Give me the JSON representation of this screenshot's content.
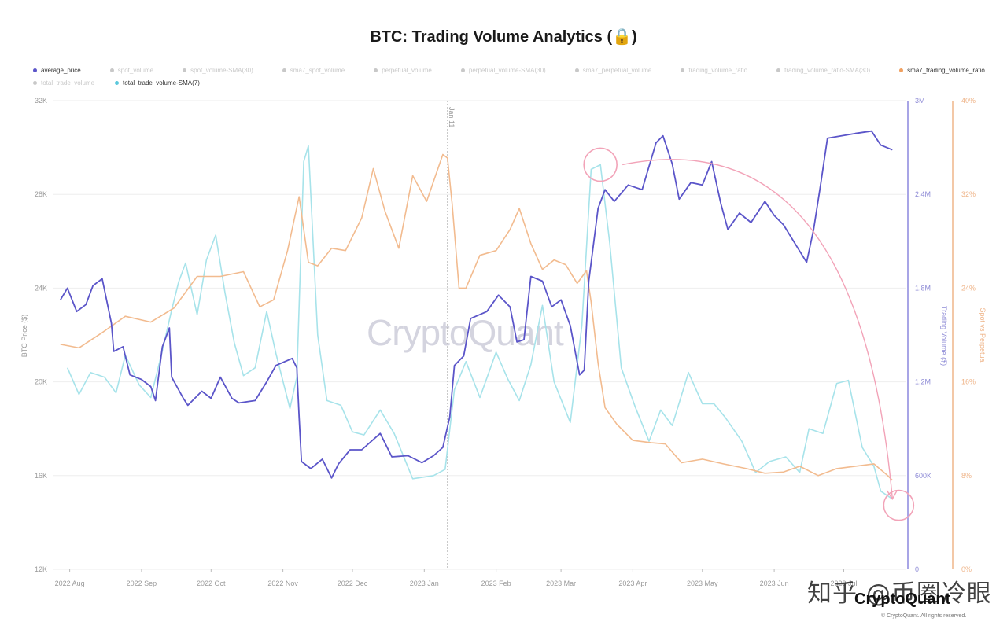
{
  "title": "BTC: Trading Volume Analytics (🔒)",
  "legend": {
    "row1": [
      {
        "label": "average_price",
        "color": "#5b55c9",
        "active": true
      },
      {
        "label": "spot_volume",
        "color": "#c8c8c8",
        "active": false
      },
      {
        "label": "spot_volume-SMA(30)",
        "color": "#c8c8c8",
        "active": false
      },
      {
        "label": "sma7_spot_volume",
        "color": "#c8c8c8",
        "active": false
      },
      {
        "label": "perpetual_volume",
        "color": "#c8c8c8",
        "active": false
      },
      {
        "label": "perpetual_volume-SMA(30)",
        "color": "#c8c8c8",
        "active": false
      },
      {
        "label": "sma7_perpetual_volume",
        "color": "#c8c8c8",
        "active": false
      },
      {
        "label": "trading_volume_ratio",
        "color": "#c8c8c8",
        "active": false
      },
      {
        "label": "trading_volume_ratio-SMA(30)",
        "color": "#c8c8c8",
        "active": false
      },
      {
        "label": "sma7_trading_volume_ratio",
        "color": "#f0a060",
        "active": true
      }
    ],
    "row2": [
      {
        "label": "total_trade_volume",
        "color": "#c8c8c8",
        "active": false
      },
      {
        "label": "total_trade_volume-SMA(7)",
        "color": "#5bc8dc",
        "active": true
      }
    ]
  },
  "axes": {
    "left_title": "BTC Price ($)",
    "middle_title": "Trading Volume ($)",
    "right_title": "Spot vs Perpetual",
    "left_ticks": [
      "32K",
      "28K",
      "24K",
      "20K",
      "16K",
      "12K"
    ],
    "middle_ticks": [
      "3M",
      "2.4M",
      "1.8M",
      "1.2M",
      "600K",
      "0"
    ],
    "right_ticks": [
      "40%",
      "32%",
      "24%",
      "16%",
      "8%",
      "0%"
    ],
    "x_ticks": [
      "2022 Aug",
      "2022 Sep",
      "2022 Oct",
      "2022 Nov",
      "2022 Dec",
      "2023 Jan",
      "2023 Feb",
      "2023 Mar",
      "2023 Apr",
      "2023 May",
      "2023 Jun",
      "2023 Jul"
    ],
    "marker_label": "Jan 11"
  },
  "watermark": "CryptoQuant",
  "footer": {
    "overlay_text": "知乎 @币圈冷眼",
    "brand": "CryptoQuant",
    "copyright": "© CryptoQuant. All rights reserved."
  },
  "chart_data": {
    "type": "line",
    "x_range": [
      "2022-07-28",
      "2023-07-22"
    ],
    "ylim_left": [
      12000,
      32000
    ],
    "ylim_middle": [
      0,
      3000000
    ],
    "ylim_right": [
      0,
      40
    ],
    "colors": {
      "price": "#5b55c9",
      "volume": "#a7e3ea",
      "ratio": "#f2bb8f",
      "annotation": "#f2a3b8"
    },
    "vertical_marker": {
      "date": "2023-01-11",
      "label": "Jan 11"
    },
    "series": [
      {
        "name": "average_price",
        "axis": "left",
        "points": [
          [
            "2022-07-28",
            23500
          ],
          [
            "2022-07-31",
            24000
          ],
          [
            "2022-08-04",
            23000
          ],
          [
            "2022-08-08",
            23300
          ],
          [
            "2022-08-11",
            24100
          ],
          [
            "2022-08-15",
            24400
          ],
          [
            "2022-08-19",
            22500
          ],
          [
            "2022-08-20",
            21300
          ],
          [
            "2022-08-24",
            21500
          ],
          [
            "2022-08-27",
            20300
          ],
          [
            "2022-09-01",
            20100
          ],
          [
            "2022-09-05",
            19800
          ],
          [
            "2022-09-07",
            19200
          ],
          [
            "2022-09-10",
            21500
          ],
          [
            "2022-09-13",
            22300
          ],
          [
            "2022-09-14",
            20200
          ],
          [
            "2022-09-19",
            19300
          ],
          [
            "2022-09-21",
            19000
          ],
          [
            "2022-09-27",
            19600
          ],
          [
            "2022-10-01",
            19300
          ],
          [
            "2022-10-05",
            20200
          ],
          [
            "2022-10-10",
            19300
          ],
          [
            "2022-10-13",
            19100
          ],
          [
            "2022-10-20",
            19200
          ],
          [
            "2022-10-25",
            20000
          ],
          [
            "2022-10-29",
            20700
          ],
          [
            "2022-11-05",
            21000
          ],
          [
            "2022-11-07",
            20600
          ],
          [
            "2022-11-08",
            18500
          ],
          [
            "2022-11-09",
            16600
          ],
          [
            "2022-11-13",
            16300
          ],
          [
            "2022-11-18",
            16700
          ],
          [
            "2022-11-22",
            15900
          ],
          [
            "2022-11-25",
            16500
          ],
          [
            "2022-11-30",
            17100
          ],
          [
            "2022-12-05",
            17100
          ],
          [
            "2022-12-13",
            17800
          ],
          [
            "2022-12-18",
            16800
          ],
          [
            "2022-12-25",
            16850
          ],
          [
            "2022-12-31",
            16550
          ],
          [
            "2023-01-05",
            16850
          ],
          [
            "2023-01-09",
            17200
          ],
          [
            "2023-01-12",
            18500
          ],
          [
            "2023-01-14",
            20700
          ],
          [
            "2023-01-18",
            21100
          ],
          [
            "2023-01-21",
            22700
          ],
          [
            "2023-01-28",
            23000
          ],
          [
            "2023-02-02",
            23700
          ],
          [
            "2023-02-07",
            23200
          ],
          [
            "2023-02-10",
            21700
          ],
          [
            "2023-02-13",
            21800
          ],
          [
            "2023-02-16",
            24500
          ],
          [
            "2023-02-21",
            24300
          ],
          [
            "2023-02-25",
            23200
          ],
          [
            "2023-03-01",
            23500
          ],
          [
            "2023-03-05",
            22400
          ],
          [
            "2023-03-09",
            20300
          ],
          [
            "2023-03-11",
            20500
          ],
          [
            "2023-03-13",
            24300
          ],
          [
            "2023-03-17",
            27400
          ],
          [
            "2023-03-20",
            28200
          ],
          [
            "2023-03-24",
            27700
          ],
          [
            "2023-03-30",
            28400
          ],
          [
            "2023-04-05",
            28200
          ],
          [
            "2023-04-11",
            30200
          ],
          [
            "2023-04-14",
            30500
          ],
          [
            "2023-04-18",
            29300
          ],
          [
            "2023-04-21",
            27800
          ],
          [
            "2023-04-26",
            28500
          ],
          [
            "2023-05-01",
            28400
          ],
          [
            "2023-05-05",
            29400
          ],
          [
            "2023-05-09",
            27600
          ],
          [
            "2023-05-12",
            26500
          ],
          [
            "2023-05-17",
            27200
          ],
          [
            "2023-05-22",
            26800
          ],
          [
            "2023-05-28",
            27700
          ],
          [
            "2023-06-01",
            27100
          ],
          [
            "2023-06-05",
            26700
          ],
          [
            "2023-06-10",
            25900
          ],
          [
            "2023-06-15",
            25100
          ],
          [
            "2023-06-18",
            26500
          ],
          [
            "2023-06-21",
            28400
          ],
          [
            "2023-06-24",
            30400
          ],
          [
            "2023-06-30",
            30500
          ],
          [
            "2023-07-06",
            30600
          ],
          [
            "2023-07-13",
            30700
          ],
          [
            "2023-07-17",
            30100
          ],
          [
            "2023-07-22",
            29900
          ]
        ]
      },
      {
        "name": "total_trade_volume-SMA(7)",
        "axis": "middle",
        "points": [
          [
            "2022-07-31",
            1290000
          ],
          [
            "2022-08-05",
            1120000
          ],
          [
            "2022-08-10",
            1260000
          ],
          [
            "2022-08-16",
            1230000
          ],
          [
            "2022-08-21",
            1130000
          ],
          [
            "2022-08-25",
            1370000
          ],
          [
            "2022-08-31",
            1180000
          ],
          [
            "2022-09-05",
            1100000
          ],
          [
            "2022-09-10",
            1400000
          ],
          [
            "2022-09-14",
            1660000
          ],
          [
            "2022-09-17",
            1840000
          ],
          [
            "2022-09-20",
            1960000
          ],
          [
            "2022-09-25",
            1630000
          ],
          [
            "2022-09-29",
            1980000
          ],
          [
            "2022-10-03",
            2140000
          ],
          [
            "2022-10-07",
            1770000
          ],
          [
            "2022-10-11",
            1450000
          ],
          [
            "2022-10-15",
            1240000
          ],
          [
            "2022-10-20",
            1290000
          ],
          [
            "2022-10-25",
            1650000
          ],
          [
            "2022-10-29",
            1380000
          ],
          [
            "2022-11-04",
            1030000
          ],
          [
            "2022-11-07",
            1230000
          ],
          [
            "2022-11-10",
            2610000
          ],
          [
            "2022-11-12",
            2710000
          ],
          [
            "2022-11-16",
            1500000
          ],
          [
            "2022-11-20",
            1080000
          ],
          [
            "2022-11-26",
            1050000
          ],
          [
            "2022-12-01",
            880000
          ],
          [
            "2022-12-06",
            860000
          ],
          [
            "2022-12-13",
            1020000
          ],
          [
            "2022-12-19",
            870000
          ],
          [
            "2022-12-27",
            580000
          ],
          [
            "2023-01-05",
            600000
          ],
          [
            "2023-01-10",
            640000
          ],
          [
            "2023-01-14",
            1150000
          ],
          [
            "2023-01-19",
            1330000
          ],
          [
            "2023-01-25",
            1100000
          ],
          [
            "2023-02-01",
            1390000
          ],
          [
            "2023-02-06",
            1220000
          ],
          [
            "2023-02-11",
            1080000
          ],
          [
            "2023-02-16",
            1310000
          ],
          [
            "2023-02-21",
            1690000
          ],
          [
            "2023-02-26",
            1200000
          ],
          [
            "2023-03-05",
            940000
          ],
          [
            "2023-03-10",
            1560000
          ],
          [
            "2023-03-14",
            2560000
          ],
          [
            "2023-03-18",
            2590000
          ],
          [
            "2023-03-22",
            2090000
          ],
          [
            "2023-03-27",
            1290000
          ],
          [
            "2023-04-02",
            1040000
          ],
          [
            "2023-04-08",
            820000
          ],
          [
            "2023-04-13",
            1020000
          ],
          [
            "2023-04-18",
            920000
          ],
          [
            "2023-04-25",
            1260000
          ],
          [
            "2023-05-01",
            1060000
          ],
          [
            "2023-05-06",
            1060000
          ],
          [
            "2023-05-11",
            970000
          ],
          [
            "2023-05-18",
            820000
          ],
          [
            "2023-05-24",
            620000
          ],
          [
            "2023-05-30",
            690000
          ],
          [
            "2023-06-06",
            720000
          ],
          [
            "2023-06-12",
            620000
          ],
          [
            "2023-06-16",
            900000
          ],
          [
            "2023-06-22",
            870000
          ],
          [
            "2023-06-28",
            1190000
          ],
          [
            "2023-07-03",
            1210000
          ],
          [
            "2023-07-09",
            780000
          ],
          [
            "2023-07-14",
            660000
          ],
          [
            "2023-07-17",
            500000
          ],
          [
            "2023-07-22",
            450000
          ]
        ]
      },
      {
        "name": "sma7_trading_volume_ratio",
        "axis": "right",
        "points": [
          [
            "2022-07-28",
            19.2
          ],
          [
            "2022-08-05",
            18.9
          ],
          [
            "2022-08-15",
            20.2
          ],
          [
            "2022-08-25",
            21.6
          ],
          [
            "2022-09-05",
            21.1
          ],
          [
            "2022-09-15",
            22.3
          ],
          [
            "2022-09-25",
            25.0
          ],
          [
            "2022-10-05",
            25.0
          ],
          [
            "2022-10-15",
            25.4
          ],
          [
            "2022-10-22",
            22.4
          ],
          [
            "2022-10-28",
            23.0
          ],
          [
            "2022-11-03",
            27.2
          ],
          [
            "2022-11-08",
            31.8
          ],
          [
            "2022-11-12",
            26.2
          ],
          [
            "2022-11-16",
            25.9
          ],
          [
            "2022-11-22",
            27.4
          ],
          [
            "2022-11-28",
            27.2
          ],
          [
            "2022-12-05",
            30.0
          ],
          [
            "2022-12-10",
            34.2
          ],
          [
            "2022-12-15",
            30.6
          ],
          [
            "2022-12-21",
            27.4
          ],
          [
            "2022-12-27",
            33.6
          ],
          [
            "2023-01-02",
            31.4
          ],
          [
            "2023-01-09",
            35.4
          ],
          [
            "2023-01-11",
            35.1
          ],
          [
            "2023-01-13",
            31.2
          ],
          [
            "2023-01-16",
            24.0
          ],
          [
            "2023-01-19",
            24.0
          ],
          [
            "2023-01-25",
            26.8
          ],
          [
            "2023-02-01",
            27.2
          ],
          [
            "2023-02-07",
            29.0
          ],
          [
            "2023-02-11",
            30.8
          ],
          [
            "2023-02-16",
            27.8
          ],
          [
            "2023-02-21",
            25.6
          ],
          [
            "2023-02-26",
            26.4
          ],
          [
            "2023-03-03",
            26.0
          ],
          [
            "2023-03-08",
            24.4
          ],
          [
            "2023-03-12",
            25.5
          ],
          [
            "2023-03-14",
            22.8
          ],
          [
            "2023-03-17",
            17.6
          ],
          [
            "2023-03-20",
            13.8
          ],
          [
            "2023-03-25",
            12.4
          ],
          [
            "2023-04-01",
            11.0
          ],
          [
            "2023-04-09",
            10.8
          ],
          [
            "2023-04-15",
            10.7
          ],
          [
            "2023-04-22",
            9.1
          ],
          [
            "2023-05-01",
            9.4
          ],
          [
            "2023-05-10",
            9.0
          ],
          [
            "2023-05-20",
            8.6
          ],
          [
            "2023-05-28",
            8.2
          ],
          [
            "2023-06-05",
            8.3
          ],
          [
            "2023-06-12",
            8.8
          ],
          [
            "2023-06-20",
            8.0
          ],
          [
            "2023-06-28",
            8.6
          ],
          [
            "2023-07-06",
            8.8
          ],
          [
            "2023-07-14",
            9.0
          ],
          [
            "2023-07-20",
            8.0
          ],
          [
            "2023-07-22",
            7.6
          ]
        ]
      }
    ]
  }
}
